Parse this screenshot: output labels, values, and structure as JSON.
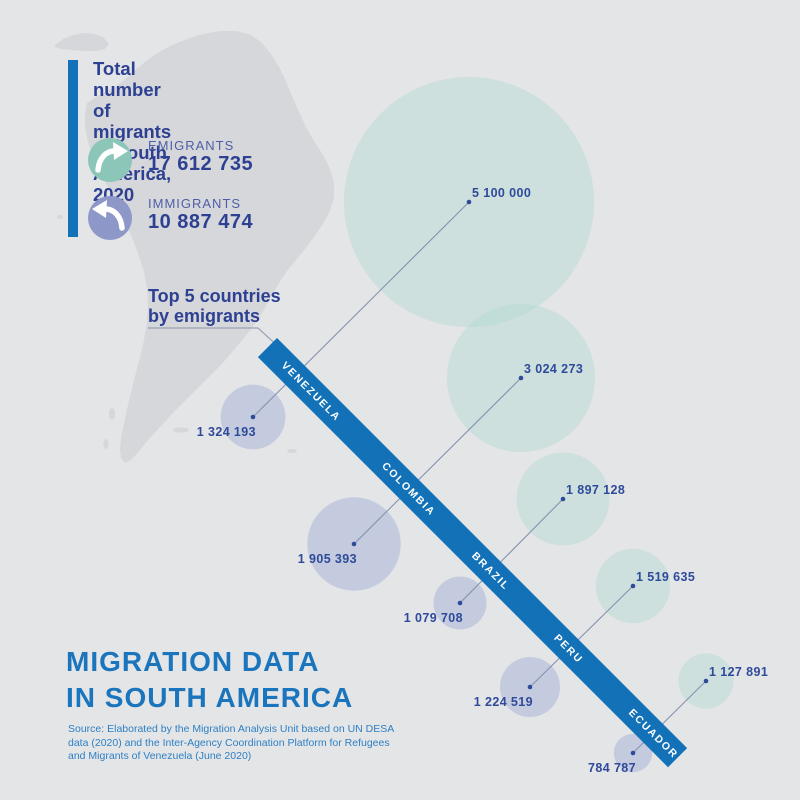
{
  "canvas": {
    "background": "#e4e5e7",
    "map_color": "#d6d7da"
  },
  "header": {
    "accent_bar_color": "#1271b7",
    "title_lines": [
      "Total number of migrants",
      "in South America, 2020"
    ],
    "stats": [
      {
        "label": "EMIGRANTS",
        "value": "17 612 735",
        "icon": "arrow-out-icon",
        "icon_color": "#8bc6b8"
      },
      {
        "label": "IMMIGRANTS",
        "value": "10 887 474",
        "icon": "arrow-in-icon",
        "icon_color": "#8d98c9"
      }
    ]
  },
  "annotation": {
    "lines": [
      "Top 5 countries",
      "by emigrants"
    ]
  },
  "ribbon": {
    "color": "#1271b7",
    "text_color": "#ffffff"
  },
  "footer": {
    "title_lines": [
      "MIGRATION DATA",
      "IN SOUTH AMERICA"
    ],
    "title_color": "#1a75bd",
    "source_lines": [
      "Source: Elaborated by the Migration Analysis Unit based on UN DESA",
      "data (2020) and the Inter-Agency Coordination Platform for Refugees",
      "and Migrants of Venezuela (June 2020)"
    ]
  },
  "chart_data": {
    "type": "bubble",
    "title": "Total number of migrants in South America, 2020",
    "subtitle": "Top 5 countries by emigrants",
    "unit": "people",
    "totals": {
      "emigrants": 17612735,
      "immigrants": 10887474
    },
    "legend": [
      {
        "name": "EMIGRANTS",
        "bubble_color": "rgba(178,217,208,0.45)",
        "icon_color": "#8bc6b8"
      },
      {
        "name": "IMMIGRANTS",
        "bubble_color": "rgba(158,170,210,0.45)",
        "icon_color": "#8d98c9"
      }
    ],
    "label_color": "#2e4a9b",
    "connector_color": "#8592b0",
    "countries": [
      {
        "name": "VENEZUELA",
        "emigrants": 5100000,
        "emigrants_label": "5 100 000",
        "immigrants": 1324193,
        "immigrants_label": "1 324 193"
      },
      {
        "name": "COLOMBIA",
        "emigrants": 3024273,
        "emigrants_label": "3 024 273",
        "immigrants": 1905393,
        "immigrants_label": "1 905 393"
      },
      {
        "name": "BRAZIL",
        "emigrants": 1897128,
        "emigrants_label": "1 897 128",
        "immigrants": 1079708,
        "immigrants_label": "1 079 708"
      },
      {
        "name": "PERU",
        "emigrants": 1519635,
        "emigrants_label": "1 519 635",
        "immigrants": 1224519,
        "immigrants_label": "1 224 519"
      },
      {
        "name": "ECUADOR",
        "emigrants": 1127891,
        "emigrants_label": "1 127 891",
        "immigrants": 784787,
        "immigrants_label": "784 787"
      }
    ]
  }
}
